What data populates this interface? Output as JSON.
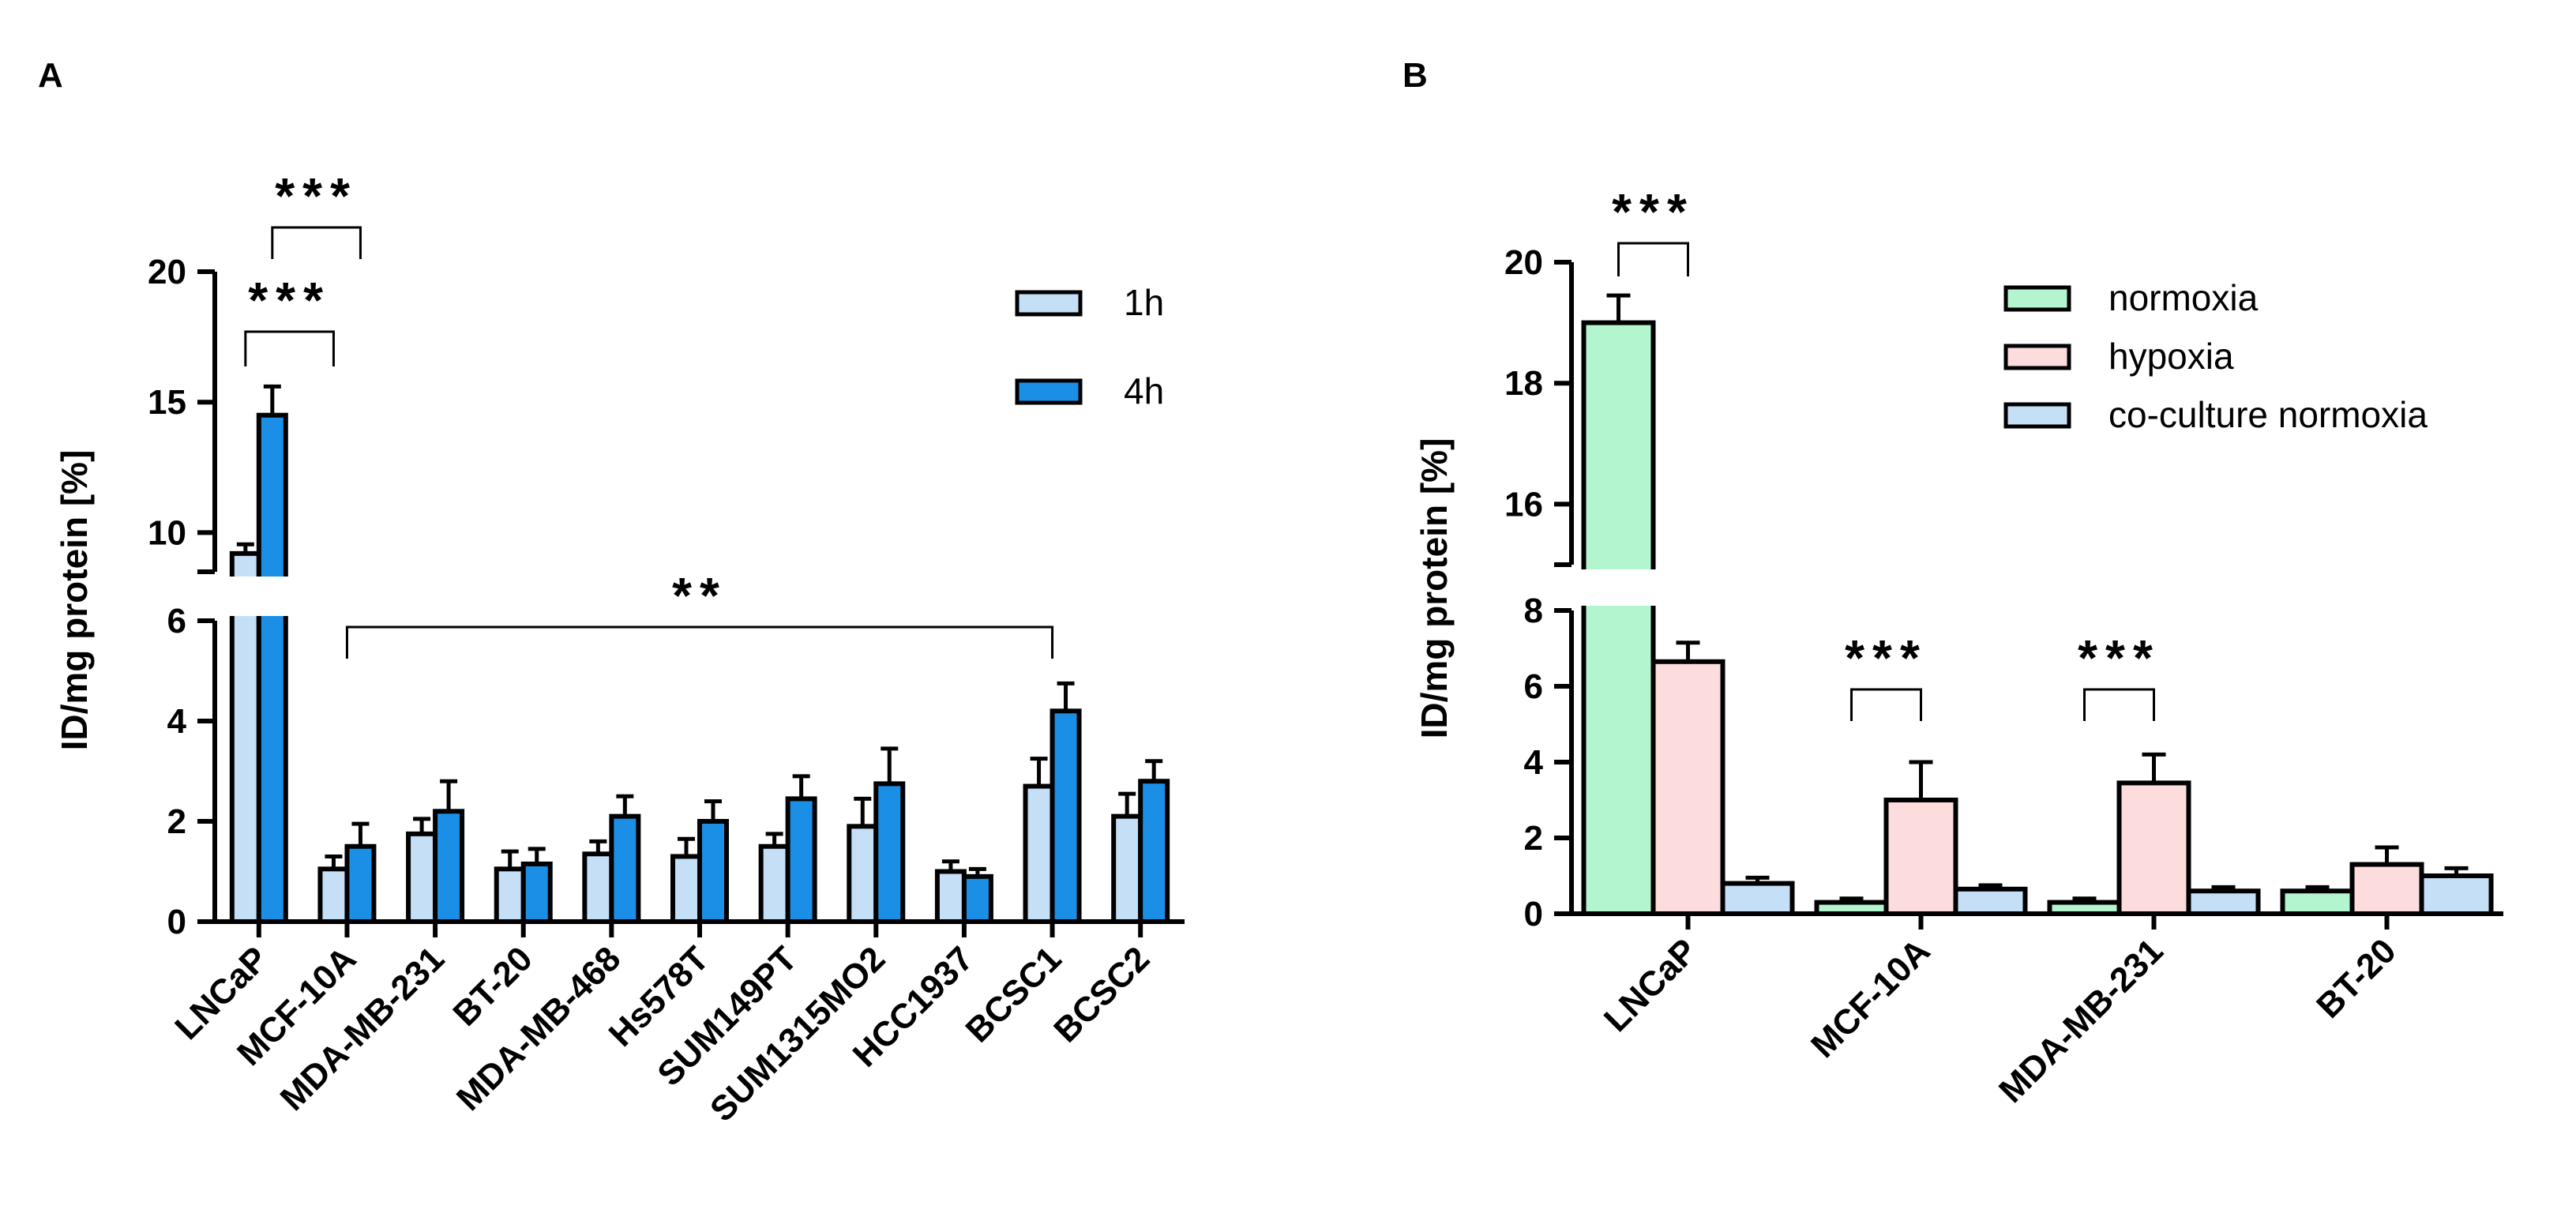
{
  "chart_data": [
    {
      "panel": "A",
      "type": "bar",
      "ylabel": "ID/mg protein [%]",
      "ylim_lower": [
        0,
        6
      ],
      "ylim_upper": [
        8.5,
        20
      ],
      "yticks": [
        "0",
        "2",
        "4",
        "6",
        "10",
        "15",
        "20"
      ],
      "categories": [
        "LNCaP",
        "MCF-10A",
        "MDA-MB-231",
        "BT-20",
        "MDA-MB-468",
        "Hs578T",
        "SUM149PT",
        "SUM1315MO2",
        "HCC1937",
        "BCSC1",
        "BCSC2"
      ],
      "series": [
        {
          "name": "1h",
          "color": "#c5dff7",
          "values": [
            9.2,
            1.05,
            1.75,
            1.05,
            1.35,
            1.3,
            1.5,
            1.9,
            1.0,
            2.7,
            2.1
          ],
          "errors": [
            0.35,
            0.25,
            0.3,
            0.35,
            0.25,
            0.35,
            0.25,
            0.55,
            0.2,
            0.55,
            0.45
          ]
        },
        {
          "name": "4h",
          "color": "#1b8fe6",
          "values": [
            14.5,
            1.5,
            2.2,
            1.15,
            2.1,
            2.0,
            2.45,
            2.75,
            0.9,
            4.2,
            2.8
          ],
          "errors": [
            1.1,
            0.45,
            0.6,
            0.3,
            0.4,
            0.4,
            0.45,
            0.7,
            0.15,
            0.55,
            0.4
          ]
        }
      ],
      "annotations": [
        {
          "label": "***",
          "from": "LNCaP 1h",
          "to": "MCF-10A 1h"
        },
        {
          "label": "***",
          "from": "LNCaP 4h",
          "to": "MCF-10A 4h"
        },
        {
          "label": "**",
          "from": "MCF-10A",
          "to": "BCSC1"
        }
      ],
      "legend": "top-right"
    },
    {
      "panel": "B",
      "type": "bar",
      "ylabel": "ID/mg protein  [%]",
      "ylim_lower": [
        0,
        8
      ],
      "ylim_upper": [
        15,
        20
      ],
      "yticks": [
        "0",
        "2",
        "4",
        "6",
        "8",
        "16",
        "18",
        "20"
      ],
      "categories": [
        "LNCaP",
        "MCF-10A",
        "MDA-MB-231",
        "BT-20"
      ],
      "series": [
        {
          "name": "normoxia",
          "color": "#b3f5cf",
          "values": [
            19.0,
            0.3,
            0.3,
            0.6
          ],
          "errors": [
            0.45,
            0.1,
            0.1,
            0.1
          ]
        },
        {
          "name": "hypoxia",
          "color": "#fddcde",
          "values": [
            6.65,
            3.0,
            3.45,
            1.3
          ],
          "errors": [
            0.5,
            1.0,
            0.75,
            0.45
          ]
        },
        {
          "name": "co-culture normoxia",
          "color": "#c5dff7",
          "values": [
            0.8,
            0.65,
            0.6,
            1.0
          ],
          "errors": [
            0.15,
            0.1,
            0.1,
            0.2
          ]
        }
      ],
      "annotations": [
        {
          "label": "***",
          "from": "LNCaP normoxia",
          "to": "LNCaP hypoxia"
        },
        {
          "label": "***",
          "from": "MCF-10A normoxia",
          "to": "MCF-10A hypoxia"
        },
        {
          "label": "***",
          "from": "MDA-MB-231 normoxia",
          "to": "MDA-MB-231 hypoxia"
        }
      ],
      "legend": "top-right"
    }
  ]
}
